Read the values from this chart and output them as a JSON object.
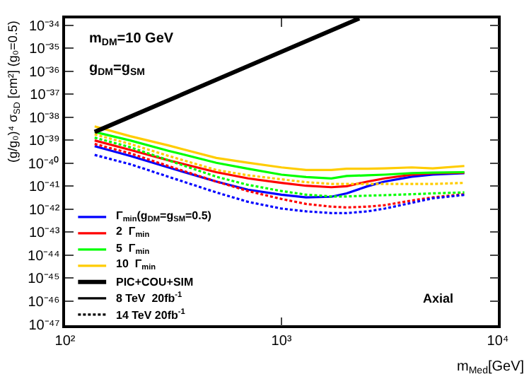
{
  "chart_data": {
    "type": "line",
    "xlabel": "m$_{Med}$[GeV]",
    "ylabel": "(g/g₀)⁴ σ$_{SD}$ [cm²] (g₀=0.5)",
    "log": "xy",
    "legend": "bottom left",
    "marker": "none",
    "xlim": [
      100,
      10000
    ],
    "xticks": [
      {
        "value": 100,
        "label": "10²"
      },
      {
        "value": 1000,
        "label": "10³"
      },
      {
        "value": 10000,
        "label": "10⁴"
      }
    ],
    "ylim": [
      9e-48,
      2e-34
    ],
    "yticks": [
      {
        "value": 1e-47,
        "label": "10⁻⁴⁷"
      },
      {
        "value": 1e-46,
        "label": "10⁻⁴⁶"
      },
      {
        "value": 1e-45,
        "label": "10⁻⁴⁵"
      },
      {
        "value": 1e-44,
        "label": "10⁻⁴⁴"
      },
      {
        "value": 1e-43,
        "label": "10⁻⁴³"
      },
      {
        "value": 1e-42,
        "label": "10⁻⁴²"
      },
      {
        "value": 1e-41,
        "label": "10⁻⁴¹"
      },
      {
        "value": 1e-40,
        "label": "10⁻⁴⁰"
      },
      {
        "value": 1e-39,
        "label": "10⁻³⁹"
      },
      {
        "value": 1e-38,
        "label": "10⁻³⁸"
      },
      {
        "value": 1e-37,
        "label": "10⁻³⁷"
      },
      {
        "value": 1e-36,
        "label": "10⁻³⁶"
      },
      {
        "value": 1e-35,
        "label": "10⁻³⁵"
      },
      {
        "value": 1e-34,
        "label": "10⁻³⁴"
      }
    ],
    "x": [
      137,
      200,
      300,
      500,
      700,
      1000,
      1300,
      1700,
      2000,
      2500,
      3000,
      4000,
      5000,
      7000
    ],
    "series": [
      {
        "name": "Γ$_{min}$(g$_{DM}$=g$_{SM}$=0.5)",
        "color": "#0000ff",
        "line_style": "solid",
        "values": [
          5.5e-40,
          2.1e-40,
          6.6e-41,
          1.6e-41,
          7.1e-42,
          4.3e-42,
          3.3e-42,
          3.5e-42,
          4.9e-42,
          1e-41,
          1.6e-41,
          2.6e-41,
          3.2e-41,
          3.7e-41
        ]
      },
      {
        "name": "2  Γ$_{min}$",
        "color": "#ff0000",
        "line_style": "solid",
        "values": [
          9.8e-40,
          3.8e-40,
          1.35e-40,
          4.1e-41,
          2.2e-41,
          1.4e-41,
          1.05e-41,
          9.1e-42,
          1e-41,
          1.6e-41,
          2.2e-41,
          3.2e-41,
          3.7e-41,
          3.9e-41
        ]
      },
      {
        "name": "5  Γ$_{min}$",
        "color": "#00ff00",
        "line_style": "solid",
        "values": [
          2.3e-39,
          9.8e-40,
          3.5e-40,
          1.05e-40,
          5.8e-41,
          3.2e-41,
          2.5e-41,
          2.2e-41,
          2.8e-41,
          3e-41,
          3.2e-41,
          3.7e-41,
          3.9e-41,
          4.1e-41
        ]
      },
      {
        "name": "10  Γ$_{min}$",
        "color": "#ffcc00",
        "line_style": "solid",
        "values": [
          4e-39,
          1.5e-39,
          6e-40,
          1.7e-40,
          1.05e-40,
          6.6e-41,
          5.1e-41,
          5.1e-41,
          5.8e-41,
          5.8e-41,
          6e-41,
          6.6e-41,
          6e-41,
          7.6e-41
        ]
      },
      {
        "name": "PIC+COU+SIM",
        "color": "#000000",
        "line_style": "solid",
        "x": [
          137,
          2290
        ],
        "values": [
          2.3e-39,
          2e-34
        ]
      },
      {
        "name": "8 TeV  20fb$^{-1}$",
        "color": "#000000",
        "line_style": "solid",
        "values": [
          null,
          null,
          null,
          null,
          null,
          null,
          null,
          null,
          null,
          null,
          null,
          null,
          null,
          null
        ]
      },
      {
        "name": "14 TeV 20fb$^{-1}$",
        "color": "#000000",
        "line_style": "dotted",
        "values": [
          null,
          null,
          null,
          null,
          null,
          null,
          null,
          null,
          null,
          null,
          null,
          null,
          null,
          null
        ]
      },
      {
        "color": "#ff0000",
        "line_style": "dotted",
        "values": [
          6.9e-40,
          2.7e-40,
          7.6e-41,
          1.6e-41,
          6.2e-42,
          2.8e-42,
          1.7e-42,
          1.3e-42,
          1.2e-42,
          1.3e-42,
          1.5e-42,
          2.4e-42,
          3.3e-42,
          4.5e-42
        ]
      },
      {
        "color": "#0000ff",
        "line_style": "dotted",
        "values": [
          2.3e-40,
          9.1e-41,
          2.6e-41,
          5.4e-42,
          2.1e-42,
          1.07e-42,
          8.1e-43,
          6.8e-43,
          6.8e-43,
          8.1e-43,
          1.07e-42,
          1.9e-42,
          3e-42,
          4.2e-42
        ]
      },
      {
        "color": "#00ff00",
        "line_style": "dotted",
        "values": [
          1.3e-39,
          5e-40,
          1.35e-40,
          2.6e-41,
          1.15e-41,
          6.2e-42,
          4.3e-42,
          3.6e-42,
          3.6e-42,
          3.9e-42,
          4.1e-42,
          4.5e-42,
          4.9e-42,
          5.4e-42
        ]
      },
      {
        "color": "#ffcc00",
        "line_style": "dotted",
        "values": [
          1.8e-39,
          6.9e-40,
          2.1e-40,
          5.1e-41,
          3e-41,
          2e-41,
          1.5e-41,
          1.26e-41,
          1.26e-41,
          1.26e-41,
          1.26e-41,
          1.26e-41,
          1.26e-41,
          1.4e-41
        ]
      }
    ],
    "annotations": [
      "m$_{DM}$=10 GeV",
      "g$_{DM}$=g$_{SM}$",
      "Axial"
    ]
  }
}
